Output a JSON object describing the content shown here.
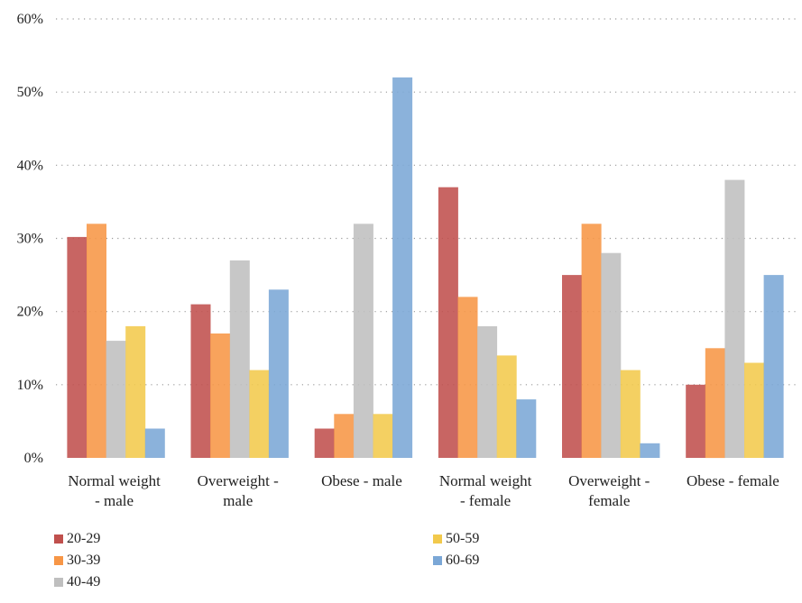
{
  "chart_data": {
    "type": "bar",
    "categories": [
      [
        "Normal weight",
        "- male"
      ],
      [
        "Overweight -",
        "male"
      ],
      [
        "Obese - male"
      ],
      [
        "Normal weight",
        "- female"
      ],
      [
        "Overweight -",
        "female"
      ],
      [
        "Obese - female"
      ]
    ],
    "series": [
      {
        "name": "20-29",
        "color": "#c0504d",
        "values": [
          30.2,
          21,
          4,
          37,
          25,
          10
        ]
      },
      {
        "name": "30-39",
        "color": "#f79646",
        "values": [
          32,
          17,
          6,
          22,
          32,
          15
        ]
      },
      {
        "name": "40-49",
        "color": "#bfbfbf",
        "values": [
          16,
          27,
          32,
          18,
          28,
          38
        ]
      },
      {
        "name": "50-59",
        "color": "#f2c94c",
        "values": [
          18,
          12,
          6,
          14,
          12,
          13
        ]
      },
      {
        "name": "60-69",
        "color": "#7ba7d6",
        "values": [
          4,
          23,
          52,
          8,
          2,
          25
        ]
      }
    ],
    "ylim": [
      0,
      60
    ],
    "yticks": [
      "0%",
      "10%",
      "20%",
      "30%",
      "40%",
      "50%",
      "60%"
    ],
    "grid": true,
    "legend_position": "bottom",
    "title": "",
    "xlabel": "",
    "ylabel": ""
  }
}
